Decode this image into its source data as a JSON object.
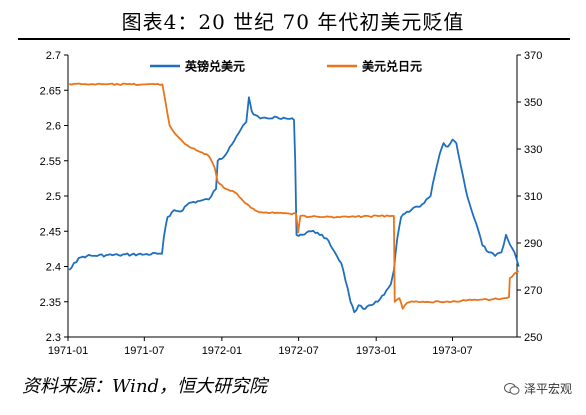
{
  "header": {
    "title": "图表4：20 世纪 70 年代初美元贬值"
  },
  "footer": {
    "source": "资料来源：Wind，恒大研究院",
    "watermark": "泽平宏观"
  },
  "chart_data": {
    "type": "line",
    "title": "",
    "xlabel": "",
    "ylabel_left": "",
    "ylabel_right": "",
    "x_ticks": [
      "1971-01",
      "1971-07",
      "1972-01",
      "1972-07",
      "1973-01",
      "1973-07"
    ],
    "x_range": [
      "1971-01",
      "1973-12"
    ],
    "y_left_range": [
      2.3,
      2.7
    ],
    "y_left_ticks": [
      "2.3",
      "2.35",
      "2.4",
      "2.45",
      "2.5",
      "2.55",
      "2.6",
      "2.65",
      "2.7"
    ],
    "y_right_range": [
      250,
      370
    ],
    "y_right_ticks": [
      "250",
      "270",
      "290",
      "310",
      "330",
      "350",
      "370"
    ],
    "grid": false,
    "legend_position": "top",
    "series": [
      {
        "name": "英镑兑美元",
        "axis": "left",
        "color": "#1f6fbf",
        "points": [
          [
            "1971-01-04",
            2.395
          ],
          [
            "1971-01-15",
            2.405
          ],
          [
            "1971-02-01",
            2.413
          ],
          [
            "1971-02-15",
            2.415
          ],
          [
            "1971-03-01",
            2.415
          ],
          [
            "1971-04-01",
            2.416
          ],
          [
            "1971-05-01",
            2.416
          ],
          [
            "1971-06-01",
            2.417
          ],
          [
            "1971-07-01",
            2.417
          ],
          [
            "1971-08-01",
            2.418
          ],
          [
            "1971-08-12",
            2.418
          ],
          [
            "1971-08-16",
            2.44
          ],
          [
            "1971-08-25",
            2.47
          ],
          [
            "1971-09-10",
            2.48
          ],
          [
            "1971-09-25",
            2.478
          ],
          [
            "1971-10-15",
            2.49
          ],
          [
            "1971-11-10",
            2.493
          ],
          [
            "1971-12-01",
            2.495
          ],
          [
            "1971-12-18",
            2.51
          ],
          [
            "1971-12-22",
            2.55
          ],
          [
            "1972-01-05",
            2.555
          ],
          [
            "1972-01-20",
            2.57
          ],
          [
            "1972-02-05",
            2.585
          ],
          [
            "1972-02-20",
            2.6
          ],
          [
            "1972-02-28",
            2.605
          ],
          [
            "1972-03-05",
            2.64
          ],
          [
            "1972-03-12",
            2.62
          ],
          [
            "1972-03-20",
            2.615
          ],
          [
            "1972-04-01",
            2.61
          ],
          [
            "1972-04-20",
            2.61
          ],
          [
            "1972-05-10",
            2.612
          ],
          [
            "1972-06-01",
            2.61
          ],
          [
            "1972-06-20",
            2.608
          ],
          [
            "1972-06-23",
            2.55
          ],
          [
            "1972-06-26",
            2.445
          ],
          [
            "1972-07-10",
            2.445
          ],
          [
            "1972-07-25",
            2.45
          ],
          [
            "1972-08-15",
            2.448
          ],
          [
            "1972-09-05",
            2.44
          ],
          [
            "1972-09-25",
            2.42
          ],
          [
            "1972-10-10",
            2.405
          ],
          [
            "1972-10-25",
            2.37
          ],
          [
            "1972-11-01",
            2.35
          ],
          [
            "1972-11-10",
            2.335
          ],
          [
            "1972-11-20",
            2.345
          ],
          [
            "1972-12-01",
            2.34
          ],
          [
            "1972-12-15",
            2.345
          ],
          [
            "1973-01-05",
            2.35
          ],
          [
            "1973-01-20",
            2.36
          ],
          [
            "1973-02-05",
            2.375
          ],
          [
            "1973-02-12",
            2.395
          ],
          [
            "1973-02-20",
            2.44
          ],
          [
            "1973-03-01",
            2.47
          ],
          [
            "1973-03-10",
            2.475
          ],
          [
            "1973-03-25",
            2.48
          ],
          [
            "1973-04-10",
            2.485
          ],
          [
            "1973-04-25",
            2.49
          ],
          [
            "1973-05-10",
            2.5
          ],
          [
            "1973-05-20",
            2.53
          ],
          [
            "1973-06-01",
            2.56
          ],
          [
            "1973-06-10",
            2.575
          ],
          [
            "1973-06-20",
            2.57
          ],
          [
            "1973-07-01",
            2.58
          ],
          [
            "1973-07-10",
            2.575
          ],
          [
            "1973-07-20",
            2.545
          ],
          [
            "1973-08-01",
            2.51
          ],
          [
            "1973-08-15",
            2.48
          ],
          [
            "1973-09-01",
            2.45
          ],
          [
            "1973-09-10",
            2.43
          ],
          [
            "1973-09-25",
            2.42
          ],
          [
            "1973-10-10",
            2.415
          ],
          [
            "1973-10-25",
            2.42
          ],
          [
            "1973-11-05",
            2.445
          ],
          [
            "1973-11-15",
            2.43
          ],
          [
            "1973-11-25",
            2.42
          ],
          [
            "1973-12-05",
            2.4
          ]
        ]
      },
      {
        "name": "美元兑日元",
        "axis": "right",
        "color": "#e8741c",
        "points": [
          [
            "1971-01-04",
            357.7
          ],
          [
            "1971-02-01",
            357.6
          ],
          [
            "1971-03-01",
            357.6
          ],
          [
            "1971-04-01",
            357.5
          ],
          [
            "1971-05-01",
            357.5
          ],
          [
            "1971-06-01",
            357.5
          ],
          [
            "1971-07-01",
            357.5
          ],
          [
            "1971-08-13",
            357.5
          ],
          [
            "1971-08-30",
            340.0
          ],
          [
            "1971-09-10",
            337.0
          ],
          [
            "1971-09-20",
            335.0
          ],
          [
            "1971-10-01",
            333.0
          ],
          [
            "1971-10-15",
            331.0
          ],
          [
            "1971-11-01",
            329.5
          ],
          [
            "1971-11-15",
            328.5
          ],
          [
            "1971-12-01",
            327.0
          ],
          [
            "1971-12-15",
            322.0
          ],
          [
            "1971-12-22",
            316.0
          ],
          [
            "1972-01-10",
            313.0
          ],
          [
            "1972-02-01",
            311.5
          ],
          [
            "1972-02-20",
            308.0
          ],
          [
            "1972-03-10",
            305.0
          ],
          [
            "1972-03-25",
            303.5
          ],
          [
            "1972-04-15",
            303.0
          ],
          [
            "1972-05-15",
            302.8
          ],
          [
            "1972-06-10",
            302.5
          ],
          [
            "1972-06-25",
            302.5
          ],
          [
            "1972-06-30",
            294.5
          ],
          [
            "1972-07-05",
            301.5
          ],
          [
            "1972-08-01",
            301.2
          ],
          [
            "1972-09-01",
            301.1
          ],
          [
            "1972-10-01",
            301.1
          ],
          [
            "1972-11-01",
            301.2
          ],
          [
            "1972-12-01",
            301.3
          ],
          [
            "1973-01-10",
            301.5
          ],
          [
            "1973-02-12",
            301.5
          ],
          [
            "1973-02-14",
            265.0
          ],
          [
            "1973-02-25",
            266.5
          ],
          [
            "1973-03-05",
            262.0
          ],
          [
            "1973-03-15",
            264.5
          ],
          [
            "1973-04-01",
            265.0
          ],
          [
            "1973-05-01",
            265.0
          ],
          [
            "1973-06-01",
            265.0
          ],
          [
            "1973-07-01",
            265.2
          ],
          [
            "1973-08-01",
            265.5
          ],
          [
            "1973-09-01",
            265.8
          ],
          [
            "1973-10-01",
            266.0
          ],
          [
            "1973-11-01",
            266.5
          ],
          [
            "1973-11-12",
            267.0
          ],
          [
            "1973-11-14",
            275.0
          ],
          [
            "1973-11-25",
            277.0
          ],
          [
            "1973-12-05",
            278.0
          ]
        ]
      }
    ]
  }
}
